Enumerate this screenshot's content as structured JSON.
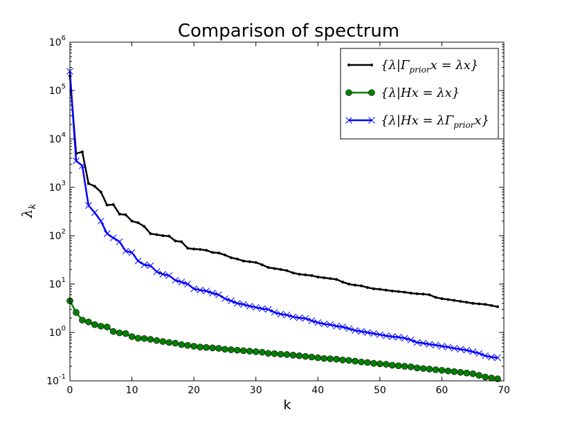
{
  "chart_data": {
    "type": "line",
    "title": "Comparison of spectrum",
    "xlabel": "k",
    "ylabel": "λ_k",
    "xlim": [
      0,
      70
    ],
    "ylim": [
      0.1,
      1000000
    ],
    "yscale": "log",
    "xticks": [
      "0",
      "10",
      "20",
      "30",
      "40",
      "50",
      "60",
      "70"
    ],
    "yticks": [
      {
        "base": "10",
        "exp": "-1"
      },
      {
        "base": "10",
        "exp": "0"
      },
      {
        "base": "10",
        "exp": "1"
      },
      {
        "base": "10",
        "exp": "2"
      },
      {
        "base": "10",
        "exp": "3"
      },
      {
        "base": "10",
        "exp": "4"
      },
      {
        "base": "10",
        "exp": "5"
      },
      {
        "base": "10",
        "exp": "6"
      }
    ],
    "legend_position": "top-right",
    "series": [
      {
        "name": "{λ|Γ_prior x = λx}",
        "legend_parts": {
          "pre": "{λ|Γ",
          "sub": "prior",
          "post": "x = λx}"
        },
        "color": "#000000",
        "marker": "dot",
        "x": [
          0,
          1,
          2,
          3,
          4,
          5,
          6,
          7,
          8,
          9,
          10,
          11,
          12,
          13,
          14,
          15,
          16,
          17,
          18,
          19,
          20,
          21,
          22,
          23,
          24,
          25,
          26,
          27,
          28,
          29,
          30,
          31,
          32,
          33,
          34,
          35,
          36,
          37,
          38,
          39,
          40,
          41,
          42,
          43,
          44,
          45,
          46,
          47,
          48,
          49,
          50,
          51,
          52,
          53,
          54,
          55,
          56,
          57,
          58,
          59,
          60,
          61,
          62,
          63,
          64,
          65,
          66,
          67,
          68,
          69
        ],
        "values": [
          200000,
          5000,
          5400,
          1200,
          1050,
          800,
          430,
          440,
          280,
          270,
          200,
          185,
          155,
          110,
          105,
          100,
          98,
          78,
          75,
          55,
          53,
          52,
          50,
          45,
          44,
          40,
          35,
          33,
          30,
          29,
          28,
          25,
          22,
          21,
          20,
          19,
          17,
          16,
          15.5,
          15,
          14,
          13.5,
          13,
          12.5,
          11,
          10,
          9.5,
          9.2,
          8.5,
          8,
          7.8,
          7.5,
          7.2,
          7,
          6.8,
          6.5,
          6.3,
          6.2,
          6,
          5.3,
          5,
          4.8,
          4.6,
          4.4,
          4.2,
          4,
          3.9,
          3.8,
          3.6,
          3.4
        ]
      },
      {
        "name": "{λ|Hx = λx}",
        "legend_parts": {
          "pre": "{λ|Hx = λx}",
          "sub": "",
          "post": ""
        },
        "color": "#008000",
        "marker": "circle",
        "x": [
          0,
          1,
          2,
          3,
          4,
          5,
          6,
          7,
          8,
          9,
          10,
          11,
          12,
          13,
          14,
          15,
          16,
          17,
          18,
          19,
          20,
          21,
          22,
          23,
          24,
          25,
          26,
          27,
          28,
          29,
          30,
          31,
          32,
          33,
          34,
          35,
          36,
          37,
          38,
          39,
          40,
          41,
          42,
          43,
          44,
          45,
          46,
          47,
          48,
          49,
          50,
          51,
          52,
          53,
          54,
          55,
          56,
          57,
          58,
          59,
          60,
          61,
          62,
          63,
          64,
          65,
          66,
          67,
          68,
          69
        ],
        "values": [
          4.5,
          2.6,
          1.8,
          1.65,
          1.45,
          1.35,
          1.3,
          1.05,
          0.98,
          0.95,
          0.82,
          0.76,
          0.75,
          0.72,
          0.68,
          0.65,
          0.62,
          0.6,
          0.56,
          0.54,
          0.52,
          0.5,
          0.49,
          0.48,
          0.47,
          0.45,
          0.44,
          0.43,
          0.42,
          0.41,
          0.4,
          0.39,
          0.37,
          0.365,
          0.355,
          0.35,
          0.34,
          0.33,
          0.32,
          0.31,
          0.3,
          0.29,
          0.285,
          0.28,
          0.27,
          0.265,
          0.255,
          0.245,
          0.24,
          0.23,
          0.225,
          0.22,
          0.21,
          0.205,
          0.2,
          0.195,
          0.185,
          0.18,
          0.175,
          0.17,
          0.165,
          0.16,
          0.155,
          0.15,
          0.145,
          0.14,
          0.13,
          0.12,
          0.115,
          0.11
        ]
      },
      {
        "name": "{λ|Hx = λΓ_prior x}",
        "legend_parts": {
          "pre": "{λ|Hx = λΓ",
          "sub": "prior",
          "post": "x}"
        },
        "color": "#0000ff",
        "marker": "x",
        "x": [
          0,
          1,
          2,
          3,
          4,
          5,
          6,
          7,
          8,
          9,
          10,
          11,
          12,
          13,
          14,
          15,
          16,
          17,
          18,
          19,
          20,
          21,
          22,
          23,
          24,
          25,
          26,
          27,
          28,
          29,
          30,
          31,
          32,
          33,
          34,
          35,
          36,
          37,
          38,
          39,
          40,
          41,
          42,
          43,
          44,
          45,
          46,
          47,
          48,
          49,
          50,
          51,
          52,
          53,
          54,
          55,
          56,
          57,
          58,
          59,
          60,
          61,
          62,
          63,
          64,
          65,
          66,
          67,
          68,
          69
        ],
        "values": [
          250000,
          3500,
          2800,
          420,
          300,
          200,
          110,
          90,
          75,
          48,
          45,
          30,
          25,
          24,
          18,
          16,
          15,
          12,
          11,
          10,
          8,
          7.5,
          7.2,
          6.5,
          6,
          5,
          4.5,
          4,
          3.8,
          3.5,
          3.3,
          3.1,
          3,
          2.6,
          2.4,
          2.3,
          2.1,
          2,
          1.95,
          1.75,
          1.6,
          1.5,
          1.45,
          1.35,
          1.3,
          1.2,
          1.1,
          1.05,
          1,
          0.95,
          0.9,
          0.85,
          0.82,
          0.8,
          0.76,
          0.7,
          0.62,
          0.6,
          0.57,
          0.55,
          0.52,
          0.5,
          0.47,
          0.45,
          0.43,
          0.4,
          0.37,
          0.33,
          0.31,
          0.3
        ]
      }
    ]
  }
}
